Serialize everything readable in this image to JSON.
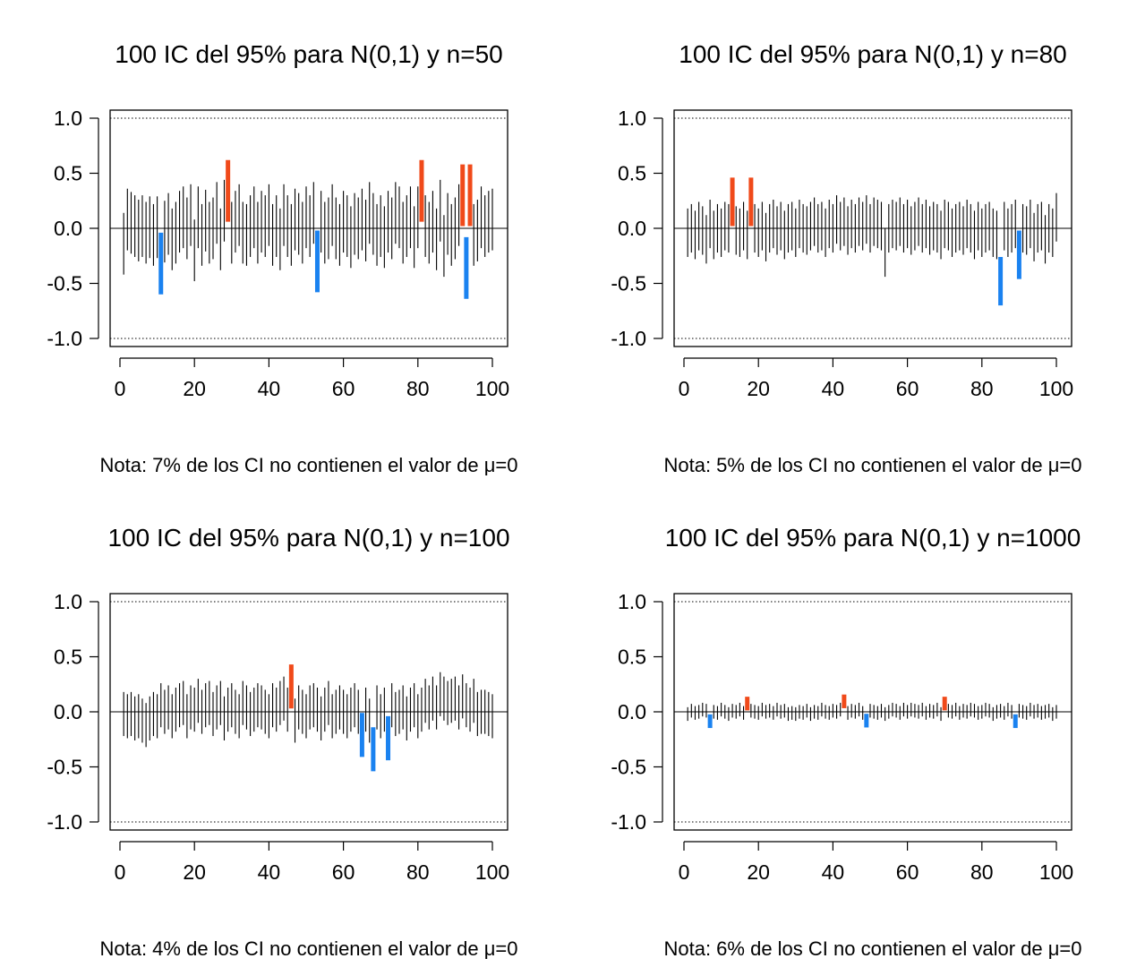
{
  "colors": {
    "interval": "#000000",
    "above_mu": "#F04A1A",
    "below_mu": "#1A82F0",
    "frame": "#000000"
  },
  "chart_data": [
    {
      "type": "interval",
      "title": "100 IC del 95% para N(0,1) y n=50",
      "note": "Nota: 7% de los CI no contienen el valor de μ=0",
      "reference_mu": 0,
      "reference_lines": [
        -1.0,
        1.0
      ],
      "xlim": [
        0,
        100
      ],
      "ylim": [
        -1.0,
        1.0
      ],
      "x_ticks": [
        "0",
        "20",
        "40",
        "60",
        "80",
        "100"
      ],
      "y_ticks": [
        "-1.0",
        "-0.5",
        "0.0",
        "0.5",
        "1.0"
      ],
      "grid": false,
      "half_width": 0.28,
      "centers": [
        -0.14,
        0.08,
        0.05,
        0.02,
        -0.02,
        0.02,
        -0.04,
        0.01,
        -0.06,
        0.01,
        -0.32,
        -0.03,
        0.04,
        -0.1,
        -0.04,
        0.06,
        0.1,
        0.0,
        0.12,
        -0.2,
        0.1,
        -0.06,
        0.07,
        -0.04,
        0.0,
        0.14,
        -0.1,
        0.16,
        0.34,
        -0.04,
        0.06,
        0.12,
        -0.04,
        -0.06,
        0.02,
        0.1,
        -0.04,
        0.06,
        0.02,
        0.12,
        -0.06,
        0.02,
        -0.1,
        0.12,
        0.02,
        -0.06,
        0.08,
        0.04,
        -0.04,
        0.1,
        0.02,
        0.14,
        -0.3,
        0.06,
        -0.04,
        0.0,
        0.12,
        0.0,
        -0.06,
        0.06,
        0.02,
        -0.08,
        0.04,
        0.0,
        0.08,
        -0.02,
        0.14,
        0.04,
        -0.06,
        0.02,
        -0.08,
        0.06,
        0.0,
        0.14,
        0.1,
        -0.04,
        0.02,
        0.1,
        -0.08,
        0.1,
        0.34,
        0.02,
        -0.04,
        0.06,
        -0.1,
        0.16,
        -0.16,
        0.04,
        -0.06,
        0.0,
        0.12,
        0.3,
        -0.36,
        0.3,
        -0.06,
        -0.02,
        0.1,
        0.02,
        0.06,
        0.08
      ]
    },
    {
      "type": "interval",
      "title": "100 IC del 95% para N(0,1) y n=80",
      "note": "Nota: 5% de los CI no contienen el valor de μ=0",
      "reference_mu": 0,
      "reference_lines": [
        -1.0,
        1.0
      ],
      "xlim": [
        0,
        100
      ],
      "ylim": [
        -1.0,
        1.0
      ],
      "x_ticks": [
        "0",
        "20",
        "40",
        "60",
        "80",
        "100"
      ],
      "y_ticks": [
        "-1.0",
        "-0.5",
        "0.0",
        "0.5",
        "1.0"
      ],
      "grid": false,
      "half_width": 0.22,
      "centers": [
        -0.04,
        0.0,
        -0.06,
        0.02,
        -0.02,
        -0.1,
        0.04,
        -0.06,
        0.0,
        -0.04,
        0.02,
        0.0,
        0.24,
        -0.02,
        -0.04,
        0.02,
        -0.06,
        0.24,
        0.0,
        -0.04,
        0.02,
        -0.08,
        0.0,
        0.04,
        -0.02,
        0.02,
        -0.06,
        0.0,
        0.02,
        -0.04,
        0.04,
        0.0,
        -0.02,
        0.02,
        0.06,
        0.0,
        0.02,
        -0.04,
        0.04,
        0.0,
        0.08,
        0.02,
        0.06,
        -0.02,
        0.04,
        0.0,
        0.06,
        0.02,
        0.08,
        0.0,
        0.06,
        0.04,
        0.02,
        -0.22,
        0.0,
        0.04,
        0.02,
        0.06,
        0.0,
        0.04,
        -0.02,
        0.02,
        0.06,
        0.0,
        0.04,
        -0.02,
        0.02,
        0.0,
        -0.06,
        0.04,
        0.02,
        -0.04,
        0.0,
        0.02,
        -0.02,
        0.04,
        0.0,
        -0.06,
        0.02,
        -0.04,
        0.0,
        0.02,
        -0.04,
        -0.06,
        -0.48,
        0.02,
        -0.04,
        0.0,
        0.04,
        -0.24,
        0.0,
        -0.02,
        0.04,
        -0.08,
        0.0,
        0.02,
        -0.1,
        0.0,
        -0.04,
        0.1
      ]
    },
    {
      "type": "interval",
      "title": "100 IC del 95% para N(0,1) y n=100",
      "note": "Nota: 4% de los CI no contienen el valor de μ=0",
      "reference_mu": 0,
      "reference_lines": [
        -1.0,
        1.0
      ],
      "xlim": [
        0,
        100
      ],
      "ylim": [
        -1.0,
        1.0
      ],
      "x_ticks": [
        "0",
        "20",
        "40",
        "60",
        "80",
        "100"
      ],
      "y_ticks": [
        "-1.0",
        "-0.5",
        "0.0",
        "0.5",
        "1.0"
      ],
      "grid": false,
      "half_width": 0.2,
      "centers": [
        -0.02,
        -0.04,
        -0.02,
        -0.06,
        -0.04,
        -0.08,
        -0.12,
        -0.06,
        -0.02,
        -0.04,
        0.06,
        0.0,
        0.04,
        -0.04,
        0.02,
        0.06,
        0.08,
        -0.04,
        0.04,
        0.02,
        0.1,
        0.0,
        0.06,
        0.08,
        -0.02,
        0.04,
        0.08,
        -0.06,
        0.02,
        0.06,
        0.0,
        -0.04,
        0.08,
        0.04,
        -0.02,
        0.02,
        0.06,
        0.04,
        0.0,
        -0.04,
        0.06,
        0.02,
        0.08,
        0.12,
        0.02,
        0.23,
        -0.08,
        0.04,
        0.0,
        -0.04,
        0.04,
        0.06,
        0.02,
        -0.06,
        0.02,
        0.08,
        -0.04,
        0.0,
        0.04,
        0.0,
        -0.04,
        0.02,
        0.06,
        0.0,
        -0.21,
        0.02,
        -0.08,
        -0.34,
        0.04,
        -0.04,
        0.02,
        -0.24,
        0.06,
        -0.02,
        0.0,
        0.04,
        -0.06,
        0.02,
        0.06,
        -0.04,
        0.02,
        0.1,
        0.04,
        0.12,
        0.04,
        0.16,
        0.12,
        0.08,
        0.1,
        0.12,
        0.04,
        0.14,
        0.06,
        0.02,
        0.1,
        -0.02,
        0.0,
        0.0,
        -0.02,
        -0.04
      ]
    },
    {
      "type": "interval",
      "title": "100 IC del 95% para N(0,1) y n=1000",
      "note": "Nota: 6% de los CI no contienen el valor de μ=0",
      "reference_mu": 0,
      "reference_lines": [
        -1.0,
        1.0
      ],
      "xlim": [
        0,
        100
      ],
      "ylim": [
        -1.0,
        1.0
      ],
      "x_ticks": [
        "0",
        "20",
        "40",
        "60",
        "80",
        "100"
      ],
      "y_ticks": [
        "-1.0",
        "-0.5",
        "0.0",
        "0.5",
        "1.0"
      ],
      "grid": false,
      "half_width": 0.062,
      "centers": [
        -0.02,
        0.01,
        -0.01,
        0.0,
        0.02,
        0.01,
        -0.085,
        0.0,
        -0.01,
        0.02,
        0.0,
        -0.02,
        0.01,
        0.0,
        0.02,
        -0.01,
        0.075,
        0.01,
        0.0,
        -0.01,
        0.02,
        0.0,
        0.01,
        -0.01,
        0.02,
        0.0,
        0.01,
        -0.02,
        -0.01,
        -0.02,
        0.0,
        -0.01,
        0.01,
        -0.02,
        0.0,
        -0.01,
        0.02,
        0.0,
        -0.01,
        0.01,
        0.0,
        0.02,
        0.095,
        -0.01,
        0.01,
        0.0,
        0.02,
        -0.01,
        -0.08,
        0.01,
        0.0,
        -0.01,
        0.01,
        -0.02,
        0.0,
        0.02,
        0.01,
        -0.01,
        0.02,
        0.0,
        0.02,
        0.01,
        0.0,
        0.02,
        -0.01,
        0.01,
        0.0,
        0.02,
        -0.02,
        0.075,
        0.01,
        0.0,
        0.02,
        -0.01,
        0.01,
        0.0,
        0.02,
        0.01,
        -0.01,
        0.0,
        0.02,
        0.01,
        -0.02,
        0.0,
        0.01,
        -0.01,
        0.02,
        0.0,
        -0.085,
        0.01,
        0.0,
        -0.01,
        0.02,
        0.0,
        0.01,
        -0.01,
        0.0,
        0.01,
        -0.02,
        0.0
      ]
    }
  ]
}
